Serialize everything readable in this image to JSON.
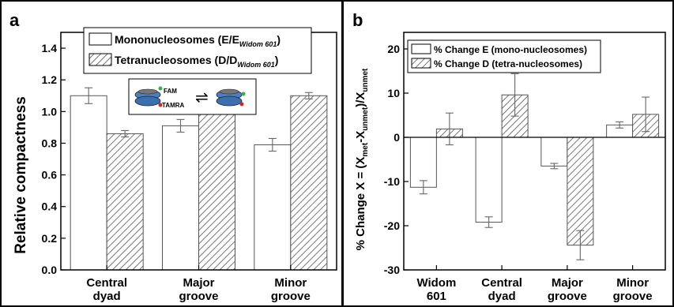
{
  "chart_data": [
    {
      "type": "bar",
      "panel_label": "a",
      "categories": [
        [
          "Central",
          "dyad"
        ],
        [
          "Major",
          "groove"
        ],
        [
          "Minor",
          "groove"
        ]
      ],
      "series": [
        {
          "name": "Mononucleosomes",
          "legend_label": "Mononucleosomes (E/E",
          "legend_sub": "Widom 601",
          "legend_tail": ")",
          "pattern": "solid",
          "values": [
            1.1,
            0.91,
            0.79
          ],
          "errors": [
            0.05,
            0.04,
            0.04
          ]
        },
        {
          "name": "Tetranucleosomes",
          "legend_label": "Tetranucleosomes (D/D",
          "legend_sub": "Widom 601",
          "legend_tail": ")",
          "pattern": "hatch",
          "values": [
            0.86,
            1.01,
            1.1
          ],
          "errors": [
            0.02,
            0.02,
            0.02
          ]
        }
      ],
      "ylabel": "Relative compactness",
      "ylim": [
        0,
        1.5
      ],
      "yticks": [
        "0.0",
        "0.2",
        "0.4",
        "0.6",
        "0.8",
        "1.0",
        "1.2",
        "1.4"
      ],
      "inset": {
        "label_top": "FAM",
        "label_bottom": "TAMRA",
        "arrow": "⇌"
      },
      "legend_position": "top-right"
    },
    {
      "type": "bar",
      "panel_label": "b",
      "categories": [
        [
          "Widom",
          "601"
        ],
        [
          "Central",
          "dyad"
        ],
        [
          "Major",
          "groove"
        ],
        [
          "Minor",
          "groove"
        ]
      ],
      "series": [
        {
          "name": "% Change E (mono-nucleosomes)",
          "pattern": "solid",
          "values": [
            -11.3,
            -19.2,
            -6.5,
            2.8
          ],
          "errors": [
            1.5,
            1.2,
            0.6,
            0.7
          ]
        },
        {
          "name": "% Change D (tetra-nucleosomes)",
          "pattern": "hatch",
          "values": [
            1.9,
            9.6,
            -24.4,
            5.2
          ],
          "errors": [
            3.6,
            4.8,
            3.3,
            3.9
          ]
        }
      ],
      "ylabel": "% Change X = (X",
      "ylabel_sub1": "met",
      "ylabel_mid": "-X",
      "ylabel_sub2": "unmet",
      "ylabel_mid2": ")/X",
      "ylabel_sub3": "unmet",
      "ylim": [
        -30,
        20
      ],
      "yticks": [
        "-30",
        "-20",
        "-10",
        "0",
        "10",
        "20"
      ],
      "zero_line": true,
      "legend_position": "top-left"
    }
  ]
}
